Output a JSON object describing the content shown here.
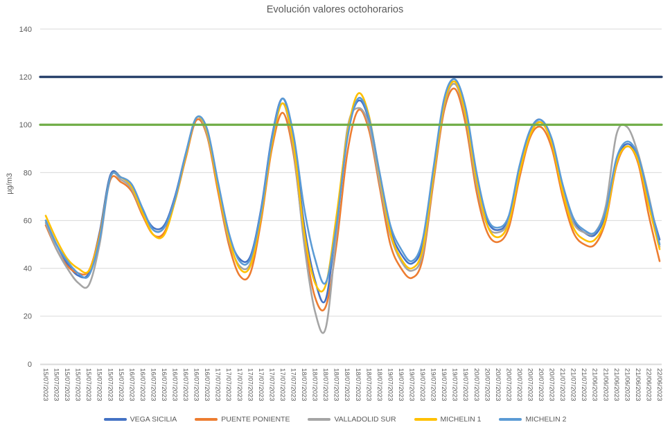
{
  "colors": {
    "background": "#FFFFFF",
    "grid": "#D9D9D9",
    "axis_line": "#D9D9D9",
    "axis_text": "#595959",
    "title_text": "#595959"
  },
  "chart_data": {
    "type": "line",
    "title": "Evolución valores octohorarios",
    "xlabel": "",
    "ylabel": "µg/m3",
    "ylim": [
      0,
      140
    ],
    "yticks": [
      0,
      20,
      40,
      60,
      80,
      100,
      120,
      140
    ],
    "grid": true,
    "legend_position": "bottom",
    "line_smoothing": true,
    "categories": [
      "15/07/2023",
      "15/07/2023",
      "15/07/2023",
      "15/07/2023",
      "15/07/2023",
      "15/07/2023",
      "15/07/2023",
      "15/07/2023",
      "16/07/2023",
      "16/07/2023",
      "16/07/2023",
      "16/07/2023",
      "16/07/2023",
      "16/07/2023",
      "16/07/2023",
      "16/07/2023",
      "17/07/2023",
      "17/07/2023",
      "17/07/2023",
      "17/07/2023",
      "17/07/2023",
      "17/07/2023",
      "17/07/2023",
      "17/07/2023",
      "18/07/2023",
      "18/07/2023",
      "18/07/2023",
      "18/07/2023",
      "18/07/2023",
      "18/07/2023",
      "18/07/2023",
      "18/07/2023",
      "19/07/2023",
      "19/07/2023",
      "19/07/2023",
      "19/07/2023",
      "19/07/2023",
      "19/07/2023",
      "19/07/2023",
      "19/07/2023",
      "20/07/2023",
      "20/07/2023",
      "20/07/2023",
      "20/07/2023",
      "20/07/2023",
      "20/07/2023",
      "20/07/2023",
      "20/07/2023",
      "21/07/2023",
      "21/07/2023",
      "21/07/2023",
      "21/06/2023",
      "21/06/2023",
      "21/06/2023",
      "21/06/2023",
      "21/06/2023",
      "22/06/2023",
      "22/06/2023"
    ],
    "series": [
      {
        "name": "VEGA SICILIA",
        "color": "#4472C4",
        "values": [
          60,
          50,
          42,
          37,
          38,
          55,
          79,
          78,
          74,
          64,
          57,
          58,
          70,
          88,
          103,
          97,
          75,
          54,
          44,
          45,
          65,
          95,
          111,
          94,
          58,
          35,
          27,
          60,
          95,
          110,
          102,
          78,
          56,
          46,
          42,
          50,
          80,
          110,
          119,
          105,
          78,
          60,
          56,
          61,
          82,
          98,
          102,
          93,
          74,
          60,
          55,
          54,
          63,
          85,
          92,
          86,
          68,
          52
        ]
      },
      {
        "name": "PUENTE PONIENTE",
        "color": "#ED7D31",
        "values": [
          58,
          48,
          41,
          38,
          39,
          54,
          77,
          76,
          72,
          62,
          54,
          55,
          68,
          86,
          102,
          95,
          72,
          50,
          37,
          38,
          60,
          90,
          105,
          88,
          52,
          28,
          24,
          50,
          88,
          106,
          98,
          74,
          50,
          40,
          36,
          44,
          76,
          106,
          115,
          100,
          72,
          55,
          51,
          57,
          78,
          95,
          99,
          90,
          70,
          55,
          50,
          50,
          60,
          83,
          91,
          84,
          62,
          43
        ]
      },
      {
        "name": "VALLADOLID SUR",
        "color": "#A5A5A5",
        "values": [
          59,
          48,
          40,
          34,
          33,
          50,
          78,
          77,
          73,
          63,
          56,
          57,
          69,
          87,
          103,
          96,
          74,
          52,
          41,
          42,
          62,
          92,
          109,
          90,
          50,
          22,
          15,
          55,
          98,
          107,
          100,
          76,
          54,
          43,
          39,
          46,
          78,
          108,
          117,
          103,
          75,
          58,
          55,
          60,
          81,
          97,
          101,
          92,
          73,
          59,
          55,
          55,
          66,
          96,
          99,
          88,
          70,
          49
        ]
      },
      {
        "name": "MICHELIN 1",
        "color": "#FFC000",
        "values": [
          62,
          52,
          44,
          40,
          39,
          53,
          78,
          78,
          74,
          63,
          54,
          54,
          68,
          87,
          103,
          97,
          74,
          53,
          40,
          41,
          62,
          92,
          109,
          92,
          55,
          34,
          33,
          62,
          96,
          113,
          104,
          79,
          55,
          44,
          40,
          48,
          79,
          109,
          118,
          104,
          77,
          58,
          53,
          59,
          80,
          96,
          101,
          92,
          72,
          57,
          52,
          52,
          61,
          84,
          91,
          85,
          66,
          48
        ]
      },
      {
        "name": "MICHELIN 2",
        "color": "#5B9BD5",
        "values": [
          60,
          50,
          43,
          38,
          37,
          52,
          78,
          78,
          75,
          65,
          56,
          57,
          69,
          88,
          103,
          98,
          76,
          55,
          43,
          44,
          64,
          94,
          111,
          96,
          65,
          44,
          34,
          58,
          94,
          111,
          103,
          80,
          58,
          48,
          43,
          52,
          82,
          111,
          119,
          107,
          80,
          61,
          57,
          62,
          83,
          98,
          102,
          94,
          75,
          61,
          56,
          55,
          64,
          86,
          93,
          87,
          69,
          50
        ]
      }
    ],
    "reference_lines": [
      {
        "name": "limit-120",
        "value": 120,
        "color": "#1F3864"
      },
      {
        "name": "limit-100",
        "value": 100,
        "color": "#70AD47"
      }
    ]
  }
}
